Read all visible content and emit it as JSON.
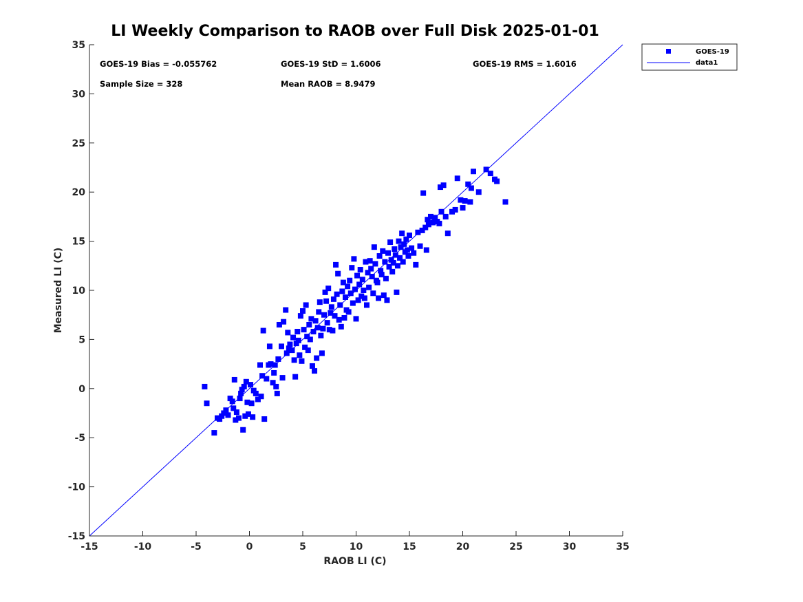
{
  "chart_data": {
    "type": "scatter",
    "title": "LI Weekly Comparison to RAOB over Full Disk 2025-01-01",
    "xlabel": "RAOB LI (C)",
    "ylabel": "Measured LI (C)",
    "xlim": [
      -15,
      35
    ],
    "ylim": [
      -15,
      35
    ],
    "xticks": [
      -15,
      -10,
      -5,
      0,
      5,
      10,
      15,
      20,
      25,
      30,
      35
    ],
    "yticks": [
      -15,
      -10,
      -5,
      0,
      5,
      10,
      15,
      20,
      25,
      30,
      35
    ],
    "grid": false,
    "legend_position": "outside-top-right",
    "stats": {
      "bias": "GOES-19 Bias = -0.055762",
      "std": "GOES-19 StD = 1.6006",
      "rms": "GOES-19 RMS = 1.6016",
      "sample": "Sample Size = 328",
      "mean": "Mean RAOB = 8.9479"
    },
    "series": [
      {
        "name": "GOES-19",
        "marker": "square",
        "color": "#0000ff",
        "points": [
          [
            -4.2,
            0.2
          ],
          [
            -4.0,
            -1.5
          ],
          [
            -3.3,
            -4.5
          ],
          [
            -3.0,
            -3.0
          ],
          [
            -2.8,
            -3.1
          ],
          [
            -2.6,
            -2.8
          ],
          [
            -2.4,
            -2.5
          ],
          [
            -2.2,
            -2.2
          ],
          [
            -2.0,
            -2.7
          ],
          [
            -1.8,
            -1.0
          ],
          [
            -1.6,
            -1.3
          ],
          [
            -1.5,
            -2.0
          ],
          [
            -1.4,
            0.9
          ],
          [
            -1.3,
            -3.2
          ],
          [
            -1.2,
            -2.4
          ],
          [
            -1.0,
            -3.0
          ],
          [
            -0.9,
            -1.0
          ],
          [
            -0.8,
            -0.5
          ],
          [
            -0.7,
            -0.1
          ],
          [
            -0.6,
            -4.2
          ],
          [
            -0.5,
            0.2
          ],
          [
            -0.4,
            -2.8
          ],
          [
            -0.3,
            0.7
          ],
          [
            -0.2,
            -1.4
          ],
          [
            -0.1,
            -2.6
          ],
          [
            0.1,
            0.4
          ],
          [
            0.2,
            -1.5
          ],
          [
            0.3,
            -2.9
          ],
          [
            0.4,
            -0.2
          ],
          [
            0.6,
            -0.5
          ],
          [
            0.8,
            -1.1
          ],
          [
            1.0,
            2.4
          ],
          [
            1.1,
            -0.8
          ],
          [
            1.2,
            1.3
          ],
          [
            1.3,
            5.9
          ],
          [
            1.4,
            -3.1
          ],
          [
            1.6,
            1.0
          ],
          [
            1.8,
            2.4
          ],
          [
            1.9,
            4.3
          ],
          [
            2.0,
            2.5
          ],
          [
            2.2,
            0.6
          ],
          [
            2.3,
            1.6
          ],
          [
            2.4,
            2.4
          ],
          [
            2.5,
            0.2
          ],
          [
            2.6,
            -0.5
          ],
          [
            2.7,
            3.0
          ],
          [
            2.8,
            6.5
          ],
          [
            3.0,
            4.3
          ],
          [
            3.1,
            1.1
          ],
          [
            3.2,
            6.8
          ],
          [
            3.4,
            8.0
          ],
          [
            3.5,
            3.6
          ],
          [
            3.6,
            5.7
          ],
          [
            3.7,
            4.1
          ],
          [
            3.8,
            4.5
          ],
          [
            4.0,
            3.9
          ],
          [
            4.1,
            5.2
          ],
          [
            4.2,
            2.9
          ],
          [
            4.3,
            1.2
          ],
          [
            4.4,
            4.6
          ],
          [
            4.5,
            5.8
          ],
          [
            4.6,
            4.9
          ],
          [
            4.7,
            3.4
          ],
          [
            4.8,
            7.4
          ],
          [
            4.9,
            2.8
          ],
          [
            5.0,
            7.9
          ],
          [
            5.1,
            6.0
          ],
          [
            5.2,
            4.2
          ],
          [
            5.3,
            8.5
          ],
          [
            5.4,
            5.3
          ],
          [
            5.5,
            3.9
          ],
          [
            5.6,
            6.5
          ],
          [
            5.7,
            5.0
          ],
          [
            5.8,
            7.1
          ],
          [
            5.9,
            2.3
          ],
          [
            6.0,
            5.8
          ],
          [
            6.1,
            1.8
          ],
          [
            6.2,
            6.9
          ],
          [
            6.3,
            3.1
          ],
          [
            6.4,
            6.2
          ],
          [
            6.5,
            7.8
          ],
          [
            6.6,
            8.8
          ],
          [
            6.7,
            5.4
          ],
          [
            6.8,
            3.6
          ],
          [
            6.9,
            6.1
          ],
          [
            7.0,
            7.5
          ],
          [
            7.1,
            9.8
          ],
          [
            7.2,
            8.9
          ],
          [
            7.3,
            6.7
          ],
          [
            7.4,
            10.2
          ],
          [
            7.5,
            6.0
          ],
          [
            7.6,
            7.7
          ],
          [
            7.7,
            8.3
          ],
          [
            7.8,
            5.9
          ],
          [
            7.9,
            9.1
          ],
          [
            8.0,
            7.4
          ],
          [
            8.1,
            12.6
          ],
          [
            8.2,
            9.6
          ],
          [
            8.3,
            11.7
          ],
          [
            8.4,
            7.0
          ],
          [
            8.5,
            8.5
          ],
          [
            8.6,
            6.3
          ],
          [
            8.7,
            9.9
          ],
          [
            8.8,
            10.8
          ],
          [
            8.9,
            7.2
          ],
          [
            9.0,
            9.3
          ],
          [
            9.1,
            8.0
          ],
          [
            9.2,
            10.4
          ],
          [
            9.3,
            7.8
          ],
          [
            9.4,
            11.0
          ],
          [
            9.5,
            9.7
          ],
          [
            9.6,
            12.3
          ],
          [
            9.7,
            8.7
          ],
          [
            9.8,
            13.2
          ],
          [
            9.9,
            10.1
          ],
          [
            10.0,
            7.1
          ],
          [
            10.1,
            11.5
          ],
          [
            10.2,
            9.0
          ],
          [
            10.3,
            10.6
          ],
          [
            10.4,
            12.1
          ],
          [
            10.5,
            9.4
          ],
          [
            10.6,
            11.1
          ],
          [
            10.7,
            10.0
          ],
          [
            10.8,
            9.2
          ],
          [
            10.9,
            12.9
          ],
          [
            11.0,
            8.5
          ],
          [
            11.1,
            11.8
          ],
          [
            11.2,
            10.3
          ],
          [
            11.3,
            13.0
          ],
          [
            11.4,
            12.2
          ],
          [
            11.5,
            11.4
          ],
          [
            11.6,
            9.7
          ],
          [
            11.7,
            14.4
          ],
          [
            11.8,
            12.7
          ],
          [
            11.9,
            11.0
          ],
          [
            12.0,
            10.8
          ],
          [
            12.1,
            9.2
          ],
          [
            12.2,
            13.5
          ],
          [
            12.3,
            12.0
          ],
          [
            12.4,
            11.6
          ],
          [
            12.5,
            14.0
          ],
          [
            12.6,
            9.5
          ],
          [
            12.7,
            12.9
          ],
          [
            12.8,
            11.2
          ],
          [
            12.9,
            9.0
          ],
          [
            13.0,
            13.8
          ],
          [
            13.1,
            12.4
          ],
          [
            13.2,
            14.9
          ],
          [
            13.3,
            13.1
          ],
          [
            13.4,
            11.9
          ],
          [
            13.5,
            12.8
          ],
          [
            13.6,
            14.2
          ],
          [
            13.7,
            13.6
          ],
          [
            13.8,
            9.8
          ],
          [
            13.9,
            12.5
          ],
          [
            14.0,
            15.0
          ],
          [
            14.1,
            13.3
          ],
          [
            14.2,
            14.4
          ],
          [
            14.3,
            15.8
          ],
          [
            14.4,
            12.9
          ],
          [
            14.5,
            14.7
          ],
          [
            14.6,
            13.9
          ],
          [
            14.7,
            15.2
          ],
          [
            14.8,
            14.1
          ],
          [
            14.9,
            13.5
          ],
          [
            15.0,
            15.6
          ],
          [
            15.2,
            14.3
          ],
          [
            15.4,
            13.8
          ],
          [
            15.6,
            12.6
          ],
          [
            15.8,
            15.9
          ],
          [
            16.0,
            14.5
          ],
          [
            16.2,
            16.1
          ],
          [
            16.3,
            19.9
          ],
          [
            16.5,
            16.4
          ],
          [
            16.6,
            14.1
          ],
          [
            16.7,
            17.2
          ],
          [
            16.8,
            16.7
          ],
          [
            17.0,
            17.5
          ],
          [
            17.2,
            16.9
          ],
          [
            17.4,
            17.4
          ],
          [
            17.6,
            17.0
          ],
          [
            17.8,
            16.8
          ],
          [
            17.9,
            20.5
          ],
          [
            18.0,
            18.0
          ],
          [
            18.2,
            20.7
          ],
          [
            18.4,
            17.5
          ],
          [
            18.6,
            15.8
          ],
          [
            19.0,
            18.0
          ],
          [
            19.3,
            18.2
          ],
          [
            19.5,
            21.4
          ],
          [
            19.8,
            19.2
          ],
          [
            20.0,
            18.4
          ],
          [
            20.2,
            19.1
          ],
          [
            20.5,
            20.8
          ],
          [
            20.7,
            19.0
          ],
          [
            20.8,
            20.4
          ],
          [
            21.0,
            22.1
          ],
          [
            21.5,
            20.0
          ],
          [
            22.2,
            22.3
          ],
          [
            22.6,
            21.9
          ],
          [
            23.0,
            21.3
          ],
          [
            23.2,
            21.1
          ],
          [
            24.0,
            19.0
          ]
        ]
      },
      {
        "name": "data1",
        "type": "line",
        "color": "#0000ff",
        "x": [
          -15,
          35
        ],
        "y": [
          -15,
          35
        ]
      }
    ]
  }
}
